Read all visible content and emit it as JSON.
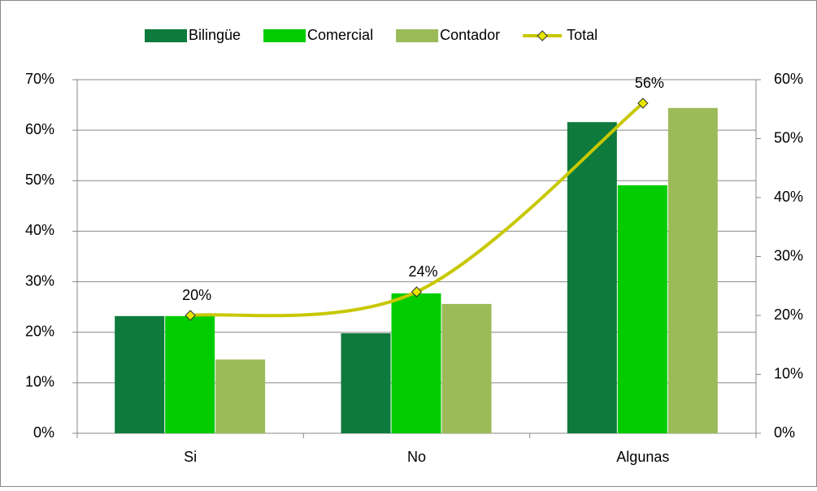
{
  "chart_data": {
    "type": "bar",
    "categories": [
      "Si",
      "No",
      "Algunas"
    ],
    "series": [
      {
        "name": "Bilingüe",
        "color": "#0e7a3c",
        "values": [
          23.2,
          19.8,
          61.6
        ]
      },
      {
        "name": "Comercial",
        "color": "#00cc00",
        "values": [
          23.2,
          27.7,
          49.1
        ]
      },
      {
        "name": "Contador",
        "color": "#9bbb59",
        "values": [
          14.6,
          25.6,
          64.4
        ]
      },
      {
        "name": "Total",
        "type": "line",
        "axis": "y2",
        "color": "#c8c800",
        "marker_color": "#e6e600",
        "values": [
          20,
          24,
          56
        ],
        "value_labels": [
          "20%",
          "24%",
          "56%"
        ]
      }
    ],
    "ylim": [
      0,
      70
    ],
    "yticks": [
      {
        "value": 0,
        "label": "0%"
      },
      {
        "value": 10,
        "label": "10%"
      },
      {
        "value": 20,
        "label": "20%"
      },
      {
        "value": 30,
        "label": "30%"
      },
      {
        "value": 40,
        "label": "40%"
      },
      {
        "value": 50,
        "label": "50%"
      },
      {
        "value": 60,
        "label": "60%"
      },
      {
        "value": 70,
        "label": "70%"
      }
    ],
    "y2lim": [
      0,
      60
    ],
    "y2ticks": [
      {
        "value": 0,
        "label": "0%"
      },
      {
        "value": 10,
        "label": "10%"
      },
      {
        "value": 20,
        "label": "20%"
      },
      {
        "value": 30,
        "label": "30%"
      },
      {
        "value": 40,
        "label": "40%"
      },
      {
        "value": 50,
        "label": "50%"
      },
      {
        "value": 60,
        "label": "60%"
      }
    ],
    "grid": true,
    "legend": "top"
  }
}
